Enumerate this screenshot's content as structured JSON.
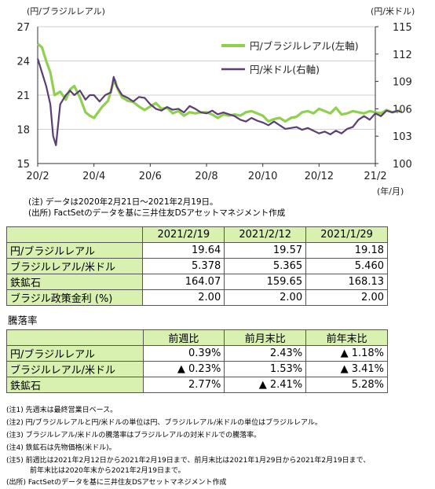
{
  "chart_data": {
    "type": "line",
    "left_axis": {
      "label": "(円/ブラジルレアル)",
      "ticks": [
        15,
        18,
        21,
        24,
        27
      ],
      "ylim": [
        15,
        27
      ]
    },
    "right_axis": {
      "label": "(円/米ドル)",
      "ticks": [
        100,
        103,
        106,
        109,
        112,
        115
      ],
      "ylim": [
        100,
        115
      ]
    },
    "x_ticks": [
      "20/2",
      "20/4",
      "20/6",
      "20/8",
      "20/10",
      "20/12",
      "21/2"
    ],
    "x_unit": "(年/月)",
    "legend_position": "top-right",
    "series": [
      {
        "name": "円/ブラジルレアル(左軸)",
        "axis": "left",
        "color": "#8fd14f",
        "points": [
          [
            0.0,
            25.5
          ],
          [
            0.15,
            25.2
          ],
          [
            0.3,
            24.0
          ],
          [
            0.45,
            23.0
          ],
          [
            0.6,
            21.0
          ],
          [
            0.8,
            21.3
          ],
          [
            1.0,
            20.6
          ],
          [
            1.15,
            21.5
          ],
          [
            1.3,
            21.8
          ],
          [
            1.5,
            20.8
          ],
          [
            1.7,
            19.5
          ],
          [
            1.85,
            19.2
          ],
          [
            2.0,
            19.0
          ],
          [
            2.15,
            19.5
          ],
          [
            2.3,
            20.0
          ],
          [
            2.5,
            20.5
          ],
          [
            2.65,
            21.8
          ],
          [
            2.75,
            22.3
          ],
          [
            2.85,
            21.5
          ],
          [
            3.0,
            20.8
          ],
          [
            3.2,
            20.5
          ],
          [
            3.4,
            20.4
          ],
          [
            3.6,
            20.0
          ],
          [
            3.8,
            19.7
          ],
          [
            4.0,
            20.0
          ],
          [
            4.2,
            20.3
          ],
          [
            4.4,
            19.8
          ],
          [
            4.6,
            19.9
          ],
          [
            4.8,
            19.4
          ],
          [
            5.0,
            19.6
          ],
          [
            5.2,
            19.2
          ],
          [
            5.4,
            19.5
          ],
          [
            5.6,
            19.4
          ],
          [
            5.8,
            19.5
          ],
          [
            6.0,
            19.5
          ],
          [
            6.2,
            19.3
          ],
          [
            6.4,
            19.0
          ],
          [
            6.6,
            19.3
          ],
          [
            6.8,
            19.2
          ],
          [
            7.0,
            19.3
          ],
          [
            7.2,
            19.2
          ],
          [
            7.4,
            19.5
          ],
          [
            7.6,
            19.6
          ],
          [
            7.8,
            19.4
          ],
          [
            8.0,
            19.2
          ],
          [
            8.2,
            18.7
          ],
          [
            8.4,
            18.9
          ],
          [
            8.6,
            19.0
          ],
          [
            8.8,
            18.7
          ],
          [
            9.0,
            19.0
          ],
          [
            9.2,
            19.1
          ],
          [
            9.4,
            19.5
          ],
          [
            9.6,
            19.6
          ],
          [
            9.8,
            19.4
          ],
          [
            10.0,
            19.8
          ],
          [
            10.2,
            19.6
          ],
          [
            10.4,
            19.4
          ],
          [
            10.6,
            19.9
          ],
          [
            10.8,
            19.3
          ],
          [
            11.0,
            19.4
          ],
          [
            11.2,
            19.6
          ],
          [
            11.4,
            19.5
          ],
          [
            11.6,
            19.4
          ],
          [
            11.8,
            19.6
          ],
          [
            12.0,
            19.5
          ],
          [
            12.2,
            19.4
          ],
          [
            12.4,
            19.7
          ],
          [
            12.6,
            19.5
          ],
          [
            12.8,
            19.6
          ],
          [
            12.95,
            19.64
          ]
        ]
      },
      {
        "name": "円/米ドル(右軸)",
        "axis": "right",
        "color": "#5b3e74",
        "points": [
          [
            0.0,
            111.5
          ],
          [
            0.15,
            110.0
          ],
          [
            0.3,
            108.5
          ],
          [
            0.45,
            106.5
          ],
          [
            0.55,
            103.0
          ],
          [
            0.65,
            102.0
          ],
          [
            0.8,
            106.5
          ],
          [
            1.0,
            107.5
          ],
          [
            1.15,
            108.0
          ],
          [
            1.3,
            107.5
          ],
          [
            1.5,
            108.0
          ],
          [
            1.7,
            107.0
          ],
          [
            1.85,
            107.5
          ],
          [
            2.0,
            107.5
          ],
          [
            2.2,
            106.8
          ],
          [
            2.4,
            107.5
          ],
          [
            2.6,
            107.8
          ],
          [
            2.7,
            109.5
          ],
          [
            2.8,
            108.5
          ],
          [
            3.0,
            107.5
          ],
          [
            3.2,
            107.2
          ],
          [
            3.4,
            106.8
          ],
          [
            3.6,
            107.3
          ],
          [
            3.8,
            107.2
          ],
          [
            4.0,
            106.5
          ],
          [
            4.2,
            106.0
          ],
          [
            4.4,
            105.8
          ],
          [
            4.6,
            106.2
          ],
          [
            4.8,
            105.9
          ],
          [
            5.0,
            106.0
          ],
          [
            5.2,
            105.6
          ],
          [
            5.4,
            106.3
          ],
          [
            5.6,
            106.0
          ],
          [
            5.8,
            105.6
          ],
          [
            6.0,
            105.5
          ],
          [
            6.2,
            105.8
          ],
          [
            6.4,
            105.4
          ],
          [
            6.6,
            105.6
          ],
          [
            6.8,
            105.4
          ],
          [
            7.0,
            105.2
          ],
          [
            7.2,
            104.8
          ],
          [
            7.4,
            104.6
          ],
          [
            7.6,
            105.0
          ],
          [
            7.8,
            104.7
          ],
          [
            8.0,
            104.5
          ],
          [
            8.2,
            104.2
          ],
          [
            8.4,
            104.6
          ],
          [
            8.6,
            104.2
          ],
          [
            8.8,
            103.8
          ],
          [
            9.0,
            103.9
          ],
          [
            9.2,
            104.0
          ],
          [
            9.4,
            103.7
          ],
          [
            9.6,
            103.9
          ],
          [
            9.8,
            103.6
          ],
          [
            10.0,
            103.3
          ],
          [
            10.2,
            103.5
          ],
          [
            10.4,
            103.2
          ],
          [
            10.6,
            103.6
          ],
          [
            10.8,
            103.3
          ],
          [
            11.0,
            103.8
          ],
          [
            11.2,
            104.0
          ],
          [
            11.4,
            104.8
          ],
          [
            11.6,
            105.2
          ],
          [
            11.8,
            104.8
          ],
          [
            12.0,
            105.5
          ],
          [
            12.2,
            105.2
          ],
          [
            12.4,
            105.8
          ],
          [
            12.6,
            105.6
          ],
          [
            12.8,
            105.8
          ],
          [
            12.95,
            105.6
          ]
        ]
      }
    ]
  },
  "notes": {
    "chart_note": "(注) データは2020年2月21日～2021年2月19日。",
    "chart_source": "(出所) FactSetのデータを基に三井住友DSアセットマネジメント作成"
  },
  "table1": {
    "headers": [
      "",
      "2021/2/19",
      "2021/2/12",
      "2021/1/29"
    ],
    "rows": [
      [
        "円/ブラジルレアル",
        "19.64",
        "19.57",
        "19.18"
      ],
      [
        "ブラジルレアル/米ドル",
        "5.378",
        "5.365",
        "5.460"
      ],
      [
        "鉄鉱石",
        "164.07",
        "159.65",
        "168.13"
      ],
      [
        "ブラジル政策金利 (%)",
        "2.00",
        "2.00",
        "2.00"
      ]
    ]
  },
  "table2": {
    "title": "騰落率",
    "headers": [
      "",
      "前週比",
      "前月末比",
      "前年末比"
    ],
    "rows": [
      [
        "円/ブラジルレアル",
        "0.39%",
        "2.43%",
        "▲ 1.18%"
      ],
      [
        "ブラジルレアル/米ドル",
        "▲ 0.23%",
        "1.53%",
        "▲ 3.41%"
      ],
      [
        "鉄鉱石",
        "2.77%",
        "▲ 2.41%",
        "5.28%"
      ]
    ]
  },
  "footnotes": [
    "(注1) 先週末は最終営業日ベース。",
    "(注2) 円/ブラジルレアルと円/米ドルの単位は円、ブラジルレアル/米ドルの単位はブラジルレアル。",
    "(注3) ブラジルレアル/米ドルの騰落率はブラジルレアルの対米ドルでの騰落率。",
    "(注4) 鉄鉱石は先物価格(米ドル)。",
    "(注5) 前週比は2021年2月12日から2021年2月19日まで、前月末比は2021年1月29日から2021年2月19日まで、",
    "前年末比は2020年末から2021年2月19日まで。",
    "(出所) FactSetのデータを基に三井住友DSアセットマネジメント作成"
  ],
  "colors": {
    "header_fill": "#d8f0b0"
  }
}
